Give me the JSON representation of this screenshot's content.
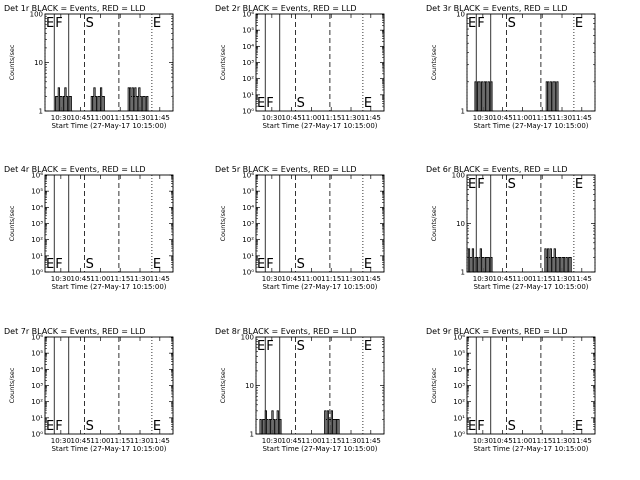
{
  "figure": {
    "background": "#ffffff",
    "foreground": "#000000",
    "series_colors": {
      "events": "#000000",
      "lld": "#ff0000"
    }
  },
  "chart_data": [
    {
      "type": "line",
      "title": "Det 1r BLACK = Events, RED = LLD",
      "xlabel": "Start Time (27-May-17 10:15:00)",
      "ylabel": "Counts/sec",
      "xlim": [
        "10:18",
        "11:55"
      ],
      "x_ticks": [
        "10:30",
        "10:45",
        "11:00",
        "11:15",
        "11:30",
        "11:45"
      ],
      "ylim": [
        1,
        100
      ],
      "y_scale": "log",
      "y_ticks": [
        {
          "value": 1,
          "label": "1"
        },
        {
          "value": 10,
          "label": "10"
        },
        {
          "value": 100,
          "label": "100"
        }
      ],
      "markers": [
        {
          "label": "E",
          "time": "10:18",
          "style": "dotted"
        },
        {
          "label": "F",
          "time": "10:25",
          "style": "solid"
        },
        {
          "label": "",
          "time": "10:36",
          "style": "solid"
        },
        {
          "label": "S",
          "time": "10:48",
          "style": "dashed"
        },
        {
          "label": "",
          "time": "11:14",
          "style": "dashed"
        },
        {
          "label": "E",
          "time": "11:39",
          "style": "dotted"
        },
        {
          "label": "",
          "time": "11:55",
          "style": "dotted"
        }
      ],
      "marker_label_pos": "top",
      "series": [
        {
          "x": [
            "10:26",
            "10:27",
            "10:28",
            "10:29",
            "10:30",
            "10:31",
            "10:32",
            "10:33",
            "10:34",
            "10:35",
            "10:36",
            "10:37",
            "10:38"
          ],
          "values": [
            2,
            2,
            3,
            2,
            2,
            1,
            2,
            3,
            2,
            1,
            2,
            2,
            1
          ]
        },
        {
          "x": [
            "10:53",
            "10:54",
            "10:55",
            "10:56",
            "10:57",
            "10:58",
            "10:59",
            "11:00",
            "11:01",
            "11:02"
          ],
          "values": [
            2,
            2,
            3,
            2,
            1,
            2,
            2,
            3,
            2,
            2
          ]
        },
        {
          "x": [
            "11:21",
            "11:22",
            "11:23",
            "11:24",
            "11:25",
            "11:26",
            "11:27",
            "11:28",
            "11:29",
            "11:30",
            "11:31",
            "11:32",
            "11:33",
            "11:34",
            "11:35",
            "11:36"
          ],
          "values": [
            3,
            3,
            2,
            3,
            2,
            3,
            2,
            2,
            3,
            2,
            1,
            2,
            2,
            1,
            2,
            1
          ]
        }
      ]
    },
    {
      "type": "line",
      "title": "Det 2r BLACK = Events, RED = LLD",
      "xlabel": "Start Time (27-May-17 10:15:00)",
      "ylabel": "Counts/sec",
      "xlim": [
        "10:18",
        "11:55"
      ],
      "x_ticks": [
        "10:30",
        "10:45",
        "11:00",
        "11:15",
        "11:30",
        "11:45"
      ],
      "ylim": [
        1,
        1000000.0
      ],
      "y_scale": "log",
      "y_ticks": [
        {
          "value": 1,
          "label": "10⁰"
        },
        {
          "value": 10,
          "label": "10¹"
        },
        {
          "value": 100,
          "label": "10²"
        },
        {
          "value": 1000,
          "label": "10³"
        },
        {
          "value": 10000,
          "label": "10⁴"
        },
        {
          "value": 100000,
          "label": "10⁵"
        },
        {
          "value": 1000000,
          "label": "10⁶"
        }
      ],
      "markers": [
        {
          "label": "E",
          "time": "10:18",
          "style": "dotted"
        },
        {
          "label": "F",
          "time": "10:25",
          "style": "solid"
        },
        {
          "label": "",
          "time": "10:36",
          "style": "solid"
        },
        {
          "label": "S",
          "time": "10:48",
          "style": "dashed"
        },
        {
          "label": "",
          "time": "11:14",
          "style": "dashed"
        },
        {
          "label": "E",
          "time": "11:39",
          "style": "dotted"
        },
        {
          "label": "",
          "time": "11:55",
          "style": "dotted"
        }
      ],
      "marker_label_pos": "bottom",
      "series": []
    },
    {
      "type": "line",
      "title": "Det 3r BLACK = Events, RED = LLD",
      "xlabel": "Start Time (27-May-17 10:15:00)",
      "ylabel": "Counts/sec",
      "xlim": [
        "10:18",
        "11:55"
      ],
      "x_ticks": [
        "10:30",
        "10:45",
        "11:00",
        "11:15",
        "11:30",
        "11:45"
      ],
      "ylim": [
        1,
        10
      ],
      "y_scale": "log",
      "y_ticks": [
        {
          "value": 1,
          "label": "1"
        },
        {
          "value": 10,
          "label": "10"
        }
      ],
      "markers": [
        {
          "label": "E",
          "time": "10:18",
          "style": "dotted"
        },
        {
          "label": "F",
          "time": "10:25",
          "style": "solid"
        },
        {
          "label": "",
          "time": "10:36",
          "style": "solid"
        },
        {
          "label": "S",
          "time": "10:48",
          "style": "dashed"
        },
        {
          "label": "",
          "time": "11:14",
          "style": "dashed"
        },
        {
          "label": "E",
          "time": "11:39",
          "style": "dotted"
        },
        {
          "label": "",
          "time": "11:55",
          "style": "dotted"
        }
      ],
      "marker_label_pos": "top",
      "series": [
        {
          "x": [
            "10:24",
            "10:25",
            "10:26",
            "10:27",
            "10:28",
            "10:29",
            "10:30",
            "10:31",
            "10:32",
            "10:33",
            "10:34",
            "10:35",
            "10:36",
            "10:37"
          ],
          "values": [
            2,
            1,
            2,
            2,
            1,
            2,
            1,
            2,
            2,
            1,
            2,
            1,
            2,
            1
          ]
        },
        {
          "x": [
            "11:18",
            "11:19",
            "11:20",
            "11:21",
            "11:22",
            "11:23",
            "11:24",
            "11:25",
            "11:26",
            "11:27"
          ],
          "values": [
            2,
            2,
            1,
            2,
            1,
            2,
            2,
            1,
            2,
            1
          ]
        }
      ]
    },
    {
      "type": "line",
      "title": "Det 4r BLACK = Events, RED = LLD",
      "xlabel": "Start Time (27-May-17 10:15:00)",
      "ylabel": "Counts/sec",
      "xlim": [
        "10:18",
        "11:55"
      ],
      "x_ticks": [
        "10:30",
        "10:45",
        "11:00",
        "11:15",
        "11:30",
        "11:45"
      ],
      "ylim": [
        1,
        1000000.0
      ],
      "y_scale": "log",
      "y_ticks": [
        {
          "value": 1,
          "label": "10⁰"
        },
        {
          "value": 10,
          "label": "10¹"
        },
        {
          "value": 100,
          "label": "10²"
        },
        {
          "value": 1000,
          "label": "10³"
        },
        {
          "value": 10000,
          "label": "10⁴"
        },
        {
          "value": 100000,
          "label": "10⁵"
        },
        {
          "value": 1000000,
          "label": "10⁶"
        }
      ],
      "markers": [
        {
          "label": "E",
          "time": "10:18",
          "style": "dotted"
        },
        {
          "label": "F",
          "time": "10:25",
          "style": "solid"
        },
        {
          "label": "",
          "time": "10:36",
          "style": "solid"
        },
        {
          "label": "S",
          "time": "10:48",
          "style": "dashed"
        },
        {
          "label": "",
          "time": "11:14",
          "style": "dashed"
        },
        {
          "label": "E",
          "time": "11:39",
          "style": "dotted"
        },
        {
          "label": "",
          "time": "11:55",
          "style": "dotted"
        }
      ],
      "marker_label_pos": "bottom",
      "series": []
    },
    {
      "type": "line",
      "title": "Det 5r BLACK = Events, RED = LLD",
      "xlabel": "Start Time (27-May-17 10:15:00)",
      "ylabel": "Counts/sec",
      "xlim": [
        "10:18",
        "11:55"
      ],
      "x_ticks": [
        "10:30",
        "10:45",
        "11:00",
        "11:15",
        "11:30",
        "11:45"
      ],
      "ylim": [
        1,
        1000000.0
      ],
      "y_scale": "log",
      "y_ticks": [
        {
          "value": 1,
          "label": "10⁰"
        },
        {
          "value": 10,
          "label": "10¹"
        },
        {
          "value": 100,
          "label": "10²"
        },
        {
          "value": 1000,
          "label": "10³"
        },
        {
          "value": 10000,
          "label": "10⁴"
        },
        {
          "value": 100000,
          "label": "10⁵"
        },
        {
          "value": 1000000,
          "label": "10⁶"
        }
      ],
      "markers": [
        {
          "label": "E",
          "time": "10:18",
          "style": "dotted"
        },
        {
          "label": "F",
          "time": "10:25",
          "style": "solid"
        },
        {
          "label": "",
          "time": "10:36",
          "style": "solid"
        },
        {
          "label": "S",
          "time": "10:48",
          "style": "dashed"
        },
        {
          "label": "",
          "time": "11:14",
          "style": "dashed"
        },
        {
          "label": "E",
          "time": "11:39",
          "style": "dotted"
        },
        {
          "label": "",
          "time": "11:55",
          "style": "dotted"
        }
      ],
      "marker_label_pos": "bottom",
      "series": []
    },
    {
      "type": "line",
      "title": "Det 6r BLACK = Events, RED = LLD",
      "xlabel": "Start Time (27-May-17 10:15:00)",
      "ylabel": "Counts/sec",
      "xlim": [
        "10:18",
        "11:55"
      ],
      "x_ticks": [
        "10:30",
        "10:45",
        "11:00",
        "11:15",
        "11:30",
        "11:45"
      ],
      "ylim": [
        1,
        100
      ],
      "y_scale": "log",
      "y_ticks": [
        {
          "value": 1,
          "label": "1"
        },
        {
          "value": 10,
          "label": "10"
        },
        {
          "value": 100,
          "label": "100"
        }
      ],
      "markers": [
        {
          "label": "E",
          "time": "10:18",
          "style": "dotted"
        },
        {
          "label": "F",
          "time": "10:25",
          "style": "solid"
        },
        {
          "label": "",
          "time": "10:36",
          "style": "solid"
        },
        {
          "label": "S",
          "time": "10:48",
          "style": "dashed"
        },
        {
          "label": "",
          "time": "11:14",
          "style": "dashed"
        },
        {
          "label": "E",
          "time": "11:39",
          "style": "dotted"
        },
        {
          "label": "",
          "time": "11:55",
          "style": "dotted"
        }
      ],
      "marker_label_pos": "top",
      "series": [
        {
          "x": [
            "10:19",
            "10:20",
            "10:21",
            "10:22",
            "10:23",
            "10:24",
            "10:25",
            "10:26",
            "10:27",
            "10:28",
            "10:29",
            "10:30",
            "10:31",
            "10:32",
            "10:33",
            "10:34",
            "10:35",
            "10:36",
            "10:37"
          ],
          "values": [
            3,
            2,
            2,
            3,
            1,
            2,
            2,
            1,
            2,
            3,
            2,
            2,
            1,
            2,
            2,
            2,
            1,
            2,
            1
          ]
        },
        {
          "x": [
            "11:17",
            "11:18",
            "11:19",
            "11:20",
            "11:21",
            "11:22",
            "11:23",
            "11:24",
            "11:25",
            "11:26",
            "11:27",
            "11:28",
            "11:29",
            "11:30",
            "11:31",
            "11:32",
            "11:33",
            "11:34",
            "11:35",
            "11:36",
            "11:37"
          ],
          "values": [
            3,
            2,
            3,
            2,
            3,
            2,
            2,
            3,
            2,
            1,
            2,
            2,
            1,
            2,
            2,
            1,
            2,
            1,
            2,
            2,
            1
          ]
        }
      ]
    },
    {
      "type": "line",
      "title": "Det 7r BLACK = Events, RED = LLD",
      "xlabel": "Start Time (27-May-17 10:15:00)",
      "ylabel": "Counts/sec",
      "xlim": [
        "10:18",
        "11:55"
      ],
      "x_ticks": [
        "10:30",
        "10:45",
        "11:00",
        "11:15",
        "11:30",
        "11:45"
      ],
      "ylim": [
        1,
        1000000.0
      ],
      "y_scale": "log",
      "y_ticks": [
        {
          "value": 1,
          "label": "10⁰"
        },
        {
          "value": 10,
          "label": "10¹"
        },
        {
          "value": 100,
          "label": "10²"
        },
        {
          "value": 1000,
          "label": "10³"
        },
        {
          "value": 10000,
          "label": "10⁴"
        },
        {
          "value": 100000,
          "label": "10⁵"
        },
        {
          "value": 1000000,
          "label": "10⁶"
        }
      ],
      "markers": [
        {
          "label": "E",
          "time": "10:18",
          "style": "dotted"
        },
        {
          "label": "F",
          "time": "10:25",
          "style": "solid"
        },
        {
          "label": "",
          "time": "10:36",
          "style": "solid"
        },
        {
          "label": "S",
          "time": "10:48",
          "style": "dashed"
        },
        {
          "label": "",
          "time": "11:14",
          "style": "dashed"
        },
        {
          "label": "E",
          "time": "11:39",
          "style": "dotted"
        },
        {
          "label": "",
          "time": "11:55",
          "style": "dotted"
        }
      ],
      "marker_label_pos": "bottom",
      "series": []
    },
    {
      "type": "line",
      "title": "Det 8r BLACK = Events, RED = LLD",
      "xlabel": "Start Time (27-May-17 10:15:00)",
      "ylabel": "Counts/sec",
      "xlim": [
        "10:18",
        "11:55"
      ],
      "x_ticks": [
        "10:30",
        "10:45",
        "11:00",
        "11:15",
        "11:30",
        "11:45"
      ],
      "ylim": [
        1,
        100
      ],
      "y_scale": "log",
      "y_ticks": [
        {
          "value": 1,
          "label": "1"
        },
        {
          "value": 10,
          "label": "10"
        },
        {
          "value": 100,
          "label": "100"
        }
      ],
      "markers": [
        {
          "label": "E",
          "time": "10:18",
          "style": "dotted"
        },
        {
          "label": "F",
          "time": "10:25",
          "style": "solid"
        },
        {
          "label": "",
          "time": "10:36",
          "style": "solid"
        },
        {
          "label": "S",
          "time": "10:48",
          "style": "dashed"
        },
        {
          "label": "",
          "time": "11:14",
          "style": "dashed"
        },
        {
          "label": "E",
          "time": "11:39",
          "style": "dotted"
        },
        {
          "label": "",
          "time": "11:55",
          "style": "dotted"
        }
      ],
      "marker_label_pos": "top",
      "series": [
        {
          "x": [
            "10:21",
            "10:22",
            "10:23",
            "10:24",
            "10:25",
            "10:26",
            "10:27",
            "10:28",
            "10:29",
            "10:30",
            "10:31",
            "10:32",
            "10:33",
            "10:34",
            "10:35",
            "10:36",
            "10:37"
          ],
          "values": [
            2,
            1,
            2,
            2,
            3,
            2,
            1,
            2,
            2,
            3,
            2,
            1,
            2,
            3,
            2,
            2,
            1
          ]
        },
        {
          "x": [
            "11:10",
            "11:11",
            "11:12",
            "11:13",
            "11:14",
            "11:15",
            "11:16",
            "11:17",
            "11:18",
            "11:19",
            "11:20"
          ],
          "values": [
            3,
            2,
            3,
            2,
            2,
            3,
            2,
            2,
            2,
            2,
            2
          ]
        }
      ]
    },
    {
      "type": "line",
      "title": "Det 9r BLACK = Events, RED = LLD",
      "xlabel": "Start Time (27-May-17 10:15:00)",
      "ylabel": "Counts/sec",
      "xlim": [
        "10:18",
        "11:55"
      ],
      "x_ticks": [
        "10:30",
        "10:45",
        "11:00",
        "11:15",
        "11:30",
        "11:45"
      ],
      "ylim": [
        1,
        1000000.0
      ],
      "y_scale": "log",
      "y_ticks": [
        {
          "value": 1,
          "label": "10⁰"
        },
        {
          "value": 10,
          "label": "10¹"
        },
        {
          "value": 100,
          "label": "10²"
        },
        {
          "value": 1000,
          "label": "10³"
        },
        {
          "value": 10000,
          "label": "10⁴"
        },
        {
          "value": 100000,
          "label": "10⁵"
        },
        {
          "value": 1000000,
          "label": "10⁶"
        }
      ],
      "markers": [
        {
          "label": "E",
          "time": "10:18",
          "style": "dotted"
        },
        {
          "label": "F",
          "time": "10:25",
          "style": "solid"
        },
        {
          "label": "",
          "time": "10:36",
          "style": "solid"
        },
        {
          "label": "S",
          "time": "10:48",
          "style": "dashed"
        },
        {
          "label": "",
          "time": "11:14",
          "style": "dashed"
        },
        {
          "label": "E",
          "time": "11:39",
          "style": "dotted"
        },
        {
          "label": "",
          "time": "11:55",
          "style": "dotted"
        }
      ],
      "marker_label_pos": "bottom",
      "series": []
    }
  ]
}
